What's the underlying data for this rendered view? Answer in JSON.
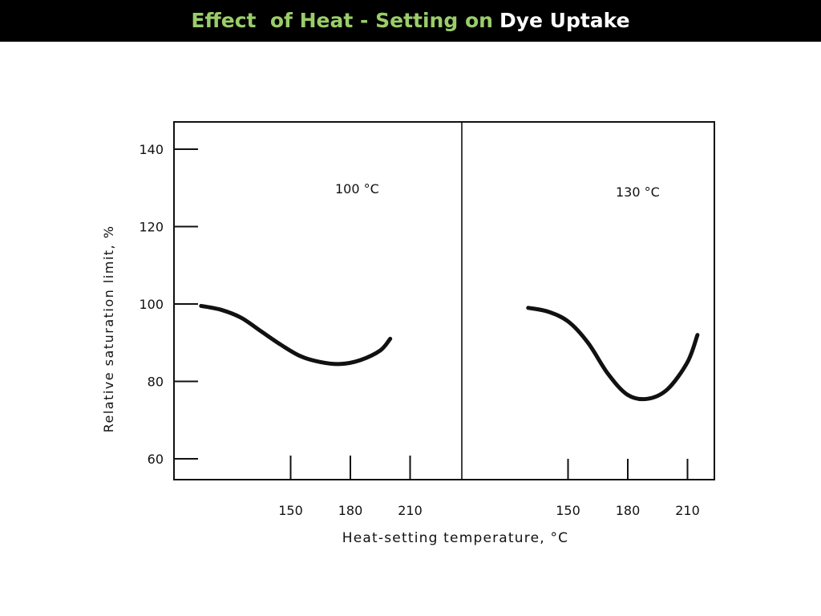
{
  "title": {
    "part1": "Effect  of Heat - Setting on",
    "part2": "Dye Uptake",
    "part1_color": "#9ACD6A",
    "part2_color": "#ffffff"
  },
  "chart_data": {
    "type": "line",
    "ylabel": "Relative saturation limit, %",
    "xlabel": "Heat-setting temperature, °C",
    "ylim": [
      58,
      148
    ],
    "yticks": [
      140,
      120,
      100,
      80,
      60
    ],
    "grid": false,
    "panels": [
      {
        "label": "100 °C",
        "xticks": [
          150,
          180,
          210
        ],
        "series": [
          {
            "x": [
              105,
              115,
              125,
              135,
              145,
              155,
              165,
              175,
              185,
              195,
              200
            ],
            "y": [
              99.5,
              98.5,
              96.5,
              93,
              89.5,
              86.5,
              85,
              84.5,
              85.5,
              88,
              91
            ]
          }
        ]
      },
      {
        "label": "130 °C",
        "xticks": [
          150,
          180,
          210
        ],
        "series": [
          {
            "x": [
              130,
              140,
              150,
              160,
              170,
              180,
              190,
              200,
              210,
              215
            ],
            "y": [
              99,
              98,
              95.5,
              90,
              82,
              76.5,
              75.5,
              78,
              85,
              92
            ]
          }
        ]
      }
    ]
  }
}
